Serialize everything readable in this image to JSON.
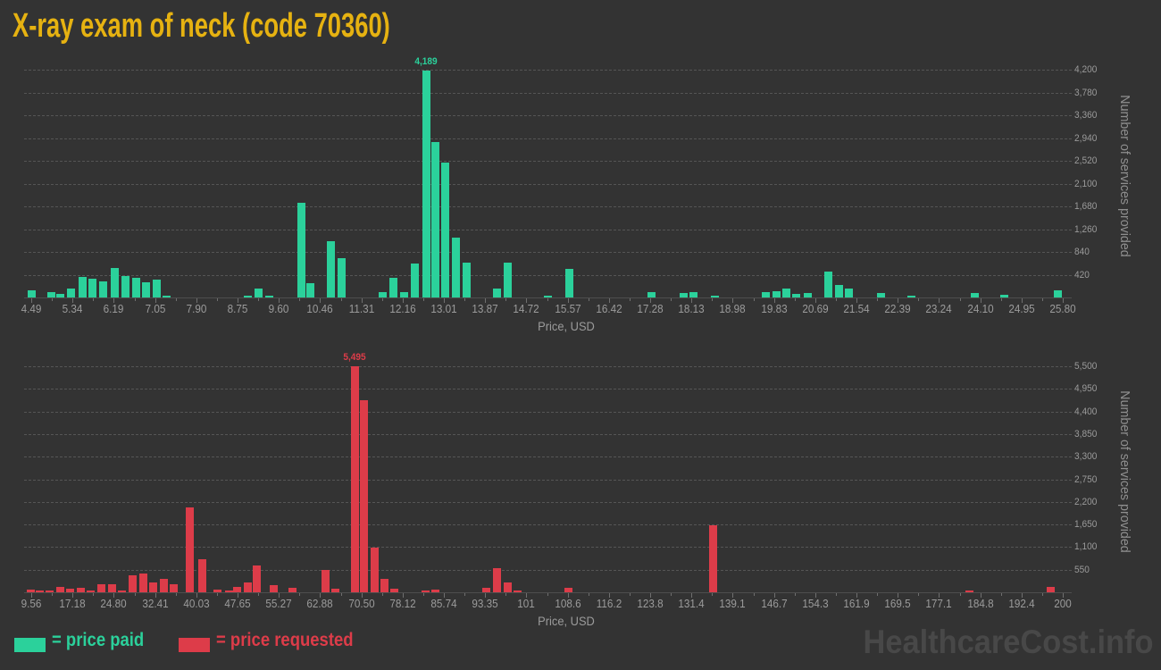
{
  "title": "X-ray exam of neck (code 70360)",
  "watermark": "HealthcareCost.info",
  "legend": {
    "paid_label": "= price paid",
    "requested_label": "= price requested"
  },
  "colors": {
    "background": "#333333",
    "paid": "#2bd19b",
    "requested": "#dd3c49",
    "title": "#e6b211",
    "axis_text": "#9b9b9b",
    "gridline": "#555555",
    "watermark": "#484848"
  },
  "chart_data": [
    {
      "type": "bar",
      "series_name": "price paid",
      "color_key": "paid",
      "xlabel": "Price, USD",
      "ylabel": "Number of services provided",
      "legend_position": "bottom",
      "grid": "dashed-horizontal",
      "x_tick_labels": [
        "4.49",
        "5.34",
        "6.19",
        "7.05",
        "7.90",
        "8.75",
        "9.60",
        "10.46",
        "11.31",
        "12.16",
        "13.01",
        "13.87",
        "14.72",
        "15.57",
        "16.42",
        "17.28",
        "18.13",
        "18.98",
        "19.83",
        "20.69",
        "21.54",
        "22.39",
        "23.24",
        "24.10",
        "24.95",
        "25.80"
      ],
      "y_ticks": [
        420,
        840,
        1260,
        1680,
        2100,
        2520,
        2940,
        3360,
        3780,
        4200
      ],
      "ylim": [
        0,
        4500
      ],
      "peak_label": "4,189",
      "bars": [
        [
          4.49,
          130
        ],
        [
          4.9,
          100
        ],
        [
          5.09,
          65
        ],
        [
          5.32,
          165
        ],
        [
          5.55,
          380
        ],
        [
          5.76,
          350
        ],
        [
          5.98,
          300
        ],
        [
          6.21,
          545
        ],
        [
          6.43,
          395
        ],
        [
          6.65,
          370
        ],
        [
          6.87,
          280
        ],
        [
          7.08,
          330
        ],
        [
          7.29,
          40
        ],
        [
          8.96,
          25
        ],
        [
          9.18,
          165
        ],
        [
          9.41,
          40
        ],
        [
          10.07,
          1750
        ],
        [
          10.26,
          270
        ],
        [
          10.68,
          1040
        ],
        [
          10.9,
          720
        ],
        [
          11.75,
          95
        ],
        [
          11.98,
          360
        ],
        [
          12.2,
          95
        ],
        [
          12.42,
          625
        ],
        [
          12.65,
          4189
        ],
        [
          12.84,
          2870
        ],
        [
          13.05,
          2490
        ],
        [
          13.27,
          1100
        ],
        [
          13.49,
          640
        ],
        [
          14.11,
          165
        ],
        [
          14.34,
          640
        ],
        [
          15.17,
          30
        ],
        [
          15.6,
          530
        ],
        [
          17.31,
          95
        ],
        [
          17.96,
          90
        ],
        [
          18.18,
          105
        ],
        [
          18.61,
          40
        ],
        [
          19.66,
          95
        ],
        [
          19.88,
          110
        ],
        [
          20.09,
          170
        ],
        [
          20.3,
          60
        ],
        [
          20.53,
          85
        ],
        [
          20.96,
          480
        ],
        [
          21.17,
          230
        ],
        [
          21.39,
          170
        ],
        [
          22.04,
          90
        ],
        [
          22.68,
          30
        ],
        [
          23.98,
          90
        ],
        [
          24.59,
          50
        ],
        [
          25.69,
          140
        ]
      ]
    },
    {
      "type": "bar",
      "series_name": "price requested",
      "color_key": "requested",
      "xlabel": "Price, USD",
      "ylabel": "Number of services provided",
      "legend_position": "bottom",
      "grid": "dashed-horizontal",
      "x_tick_labels": [
        "9.56",
        "17.18",
        "24.80",
        "32.41",
        "40.03",
        "47.65",
        "55.27",
        "62.88",
        "70.50",
        "78.12",
        "85.74",
        "93.35",
        "101",
        "108.6",
        "116.2",
        "123.8",
        "131.4",
        "139.1",
        "146.7",
        "154.3",
        "161.9",
        "169.5",
        "177.1",
        "184.8",
        "192.4",
        "200"
      ],
      "y_ticks": [
        550,
        1100,
        1650,
        2200,
        2750,
        3300,
        3850,
        4400,
        4950,
        5500
      ],
      "ylim": [
        0,
        5600
      ],
      "peak_label": "5,495",
      "bars": [
        [
          9.5,
          65
        ],
        [
          11.2,
          43
        ],
        [
          13.0,
          43
        ],
        [
          15.0,
          130
        ],
        [
          16.8,
          87
        ],
        [
          18.7,
          110
        ],
        [
          20.6,
          43
        ],
        [
          22.5,
          190
        ],
        [
          24.4,
          185
        ],
        [
          26.3,
          40
        ],
        [
          28.2,
          410
        ],
        [
          30.2,
          450
        ],
        [
          32.1,
          240
        ],
        [
          34.1,
          325
        ],
        [
          35.9,
          195
        ],
        [
          38.8,
          2070
        ],
        [
          41.2,
          810
        ],
        [
          44.0,
          60
        ],
        [
          46.0,
          50
        ],
        [
          47.5,
          120
        ],
        [
          49.5,
          230
        ],
        [
          51.2,
          660
        ],
        [
          54.3,
          180
        ],
        [
          57.8,
          115
        ],
        [
          63.9,
          550
        ],
        [
          65.7,
          93
        ],
        [
          69.3,
          5495
        ],
        [
          70.9,
          4680
        ],
        [
          72.9,
          1080
        ],
        [
          74.7,
          320
        ],
        [
          76.6,
          90
        ],
        [
          82.3,
          30
        ],
        [
          84.1,
          70
        ],
        [
          93.6,
          100
        ],
        [
          95.6,
          590
        ],
        [
          97.6,
          230
        ],
        [
          99.4,
          45
        ],
        [
          108.8,
          100
        ],
        [
          135.5,
          1635
        ],
        [
          182.7,
          30
        ],
        [
          197.8,
          120
        ]
      ]
    }
  ]
}
